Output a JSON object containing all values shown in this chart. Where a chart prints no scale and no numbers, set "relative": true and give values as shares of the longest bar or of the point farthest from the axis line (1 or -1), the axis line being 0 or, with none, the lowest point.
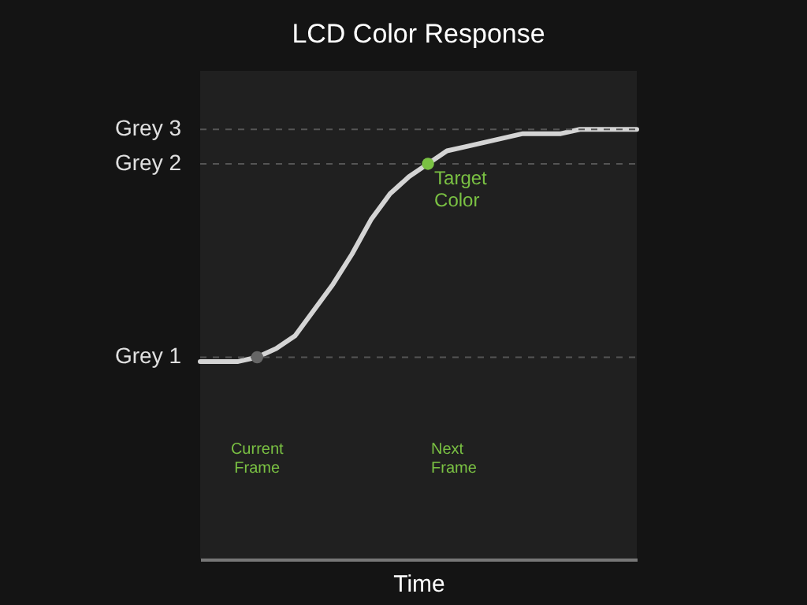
{
  "chart_data": {
    "type": "line",
    "title": "LCD Color Response",
    "xlabel": "Time",
    "relative": true,
    "categories": [
      null,
      null,
      null,
      null,
      null,
      null,
      null,
      null,
      null,
      null,
      null,
      null,
      null,
      null,
      null,
      null,
      null,
      null,
      null,
      null,
      null,
      null,
      null,
      null
    ],
    "series": [
      {
        "color": "#d4d4d4",
        "values": [
          0.46,
          0.46,
          0.46,
          0.47,
          0.49,
          0.52,
          0.58,
          0.64,
          0.71,
          0.79,
          0.85,
          0.89,
          0.92,
          0.95,
          0.96,
          0.97,
          0.98,
          0.99,
          0.99,
          0.99,
          1.0,
          1.0,
          1.0,
          1.0
        ]
      }
    ],
    "ref_lines": [
      {
        "axis": "y",
        "value": 1.0,
        "label": "Grey 3",
        "color": "#555555",
        "line_style": "dashed"
      },
      {
        "axis": "y",
        "value": 0.92,
        "label": "Grey 2",
        "color": "#555555",
        "line_style": "dashed"
      },
      {
        "axis": "y",
        "value": 0.47,
        "label": "Grey 1",
        "color": "#555555",
        "line_style": "dashed"
      }
    ],
    "annotations": [
      "Current Frame",
      "Next Frame",
      {
        "text": "Target Color",
        "y": 0.92
      }
    ]
  }
}
